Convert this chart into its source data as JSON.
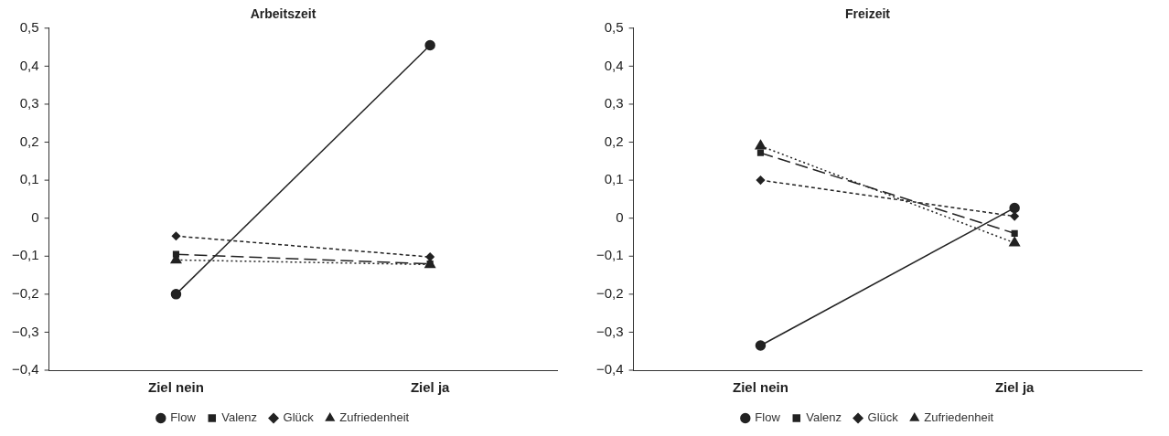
{
  "chart_data": [
    {
      "type": "line",
      "title": "Arbeitszeit",
      "categories": [
        "Ziel nein",
        "Ziel ja"
      ],
      "series": [
        {
          "name": "Flow",
          "color": "#222222",
          "values": [
            -0.2,
            0.455
          ],
          "marker": "circle",
          "line_style": "solid"
        },
        {
          "name": "Valenz",
          "color": "#222222",
          "values": [
            -0.095,
            -0.12
          ],
          "marker": "square",
          "line_style": "dashed"
        },
        {
          "name": "Glück",
          "color": "#222222",
          "values": [
            -0.047,
            -0.102
          ],
          "marker": "diamond",
          "line_style": "dashed"
        },
        {
          "name": "Zufriedenheit",
          "color": "#222222",
          "values": [
            -0.11,
            -0.122
          ],
          "marker": "triangle",
          "line_style": "dotted"
        }
      ],
      "ylim": [
        -0.4,
        0.5
      ],
      "yticks": [
        {
          "value": -0.4,
          "label": "−0,4"
        },
        {
          "value": -0.3,
          "label": "−0,3"
        },
        {
          "value": -0.2,
          "label": "−0,2"
        },
        {
          "value": -0.1,
          "label": "−0,1"
        },
        {
          "value": 0,
          "label": "0"
        },
        {
          "value": 0.1,
          "label": "0,1"
        },
        {
          "value": 0.2,
          "label": "0,2"
        },
        {
          "value": 0.3,
          "label": "0,3"
        },
        {
          "value": 0.4,
          "label": "0,4"
        },
        {
          "value": 0.5,
          "label": "0,5"
        }
      ],
      "grid": false,
      "legend": "bottom"
    },
    {
      "type": "line",
      "title": "Freizeit",
      "categories": [
        "Ziel nein",
        "Ziel ja"
      ],
      "series": [
        {
          "name": "Flow",
          "color": "#222222",
          "values": [
            -0.335,
            0.027
          ],
          "marker": "circle",
          "line_style": "solid"
        },
        {
          "name": "Valenz",
          "color": "#222222",
          "values": [
            0.172,
            -0.04
          ],
          "marker": "square",
          "line_style": "dashed"
        },
        {
          "name": "Glück",
          "color": "#222222",
          "values": [
            0.1,
            0.005
          ],
          "marker": "diamond",
          "line_style": "dashed"
        },
        {
          "name": "Zufriedenheit",
          "color": "#222222",
          "values": [
            0.19,
            -0.065
          ],
          "marker": "triangle",
          "line_style": "dotted"
        }
      ],
      "ylim": [
        -0.4,
        0.5
      ],
      "yticks": [
        {
          "value": -0.4,
          "label": "−0,4"
        },
        {
          "value": -0.3,
          "label": "−0,3"
        },
        {
          "value": -0.2,
          "label": "−0,2"
        },
        {
          "value": -0.1,
          "label": "−0,1"
        },
        {
          "value": 0,
          "label": "0"
        },
        {
          "value": 0.1,
          "label": "0,1"
        },
        {
          "value": 0.2,
          "label": "0,2"
        },
        {
          "value": 0.3,
          "label": "0,3"
        },
        {
          "value": 0.4,
          "label": "0,4"
        },
        {
          "value": 0.5,
          "label": "0,5"
        }
      ],
      "grid": false,
      "legend": "bottom"
    }
  ]
}
